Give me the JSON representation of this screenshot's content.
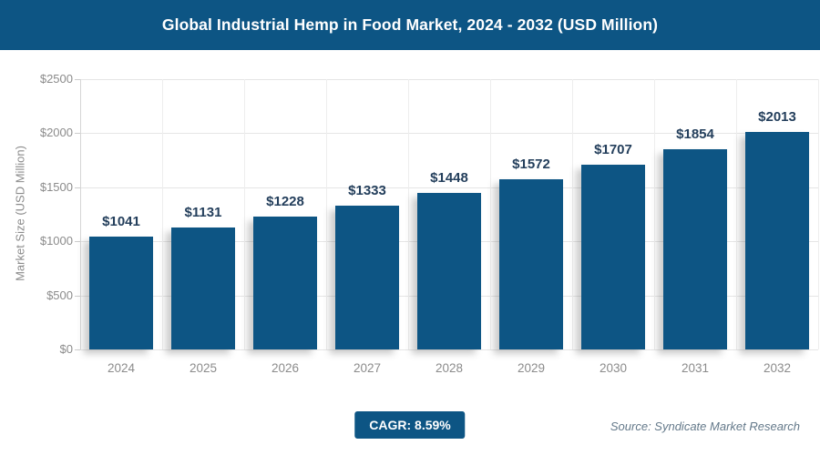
{
  "header": {
    "title": "Global Industrial Hemp in Food Market, 2024 - 2032 (USD Million)"
  },
  "chart_data": {
    "type": "bar",
    "title": "Global Industrial Hemp in Food Market, 2024 - 2032 (USD Million)",
    "categories": [
      "2024",
      "2025",
      "2026",
      "2027",
      "2028",
      "2029",
      "2030",
      "2031",
      "2032"
    ],
    "values": [
      1041,
      1131,
      1228,
      1333,
      1448,
      1572,
      1707,
      1854,
      2013
    ],
    "value_label_prefix": "$",
    "xlabel": "",
    "ylabel": "Market Size (USD Million)",
    "ylim": [
      0,
      2500
    ],
    "ytick_step": 500,
    "ytick_prefix": "$",
    "ytick_labels": [
      "$0",
      "$500",
      "$1000",
      "$1500",
      "$2000",
      "$2500"
    ],
    "grid": true,
    "legend": false,
    "bar_color": "#0d5584"
  },
  "footer": {
    "cagr_label": "CAGR: 8.59%",
    "source": "Source: Syndicate Market Research"
  },
  "colors": {
    "header_bg": "#0d5584",
    "bar": "#0d5584",
    "value_label": "#243f5c",
    "axis_text": "#8b8b8b",
    "gridline": "#e5e5e5",
    "source_text": "#64798a"
  }
}
